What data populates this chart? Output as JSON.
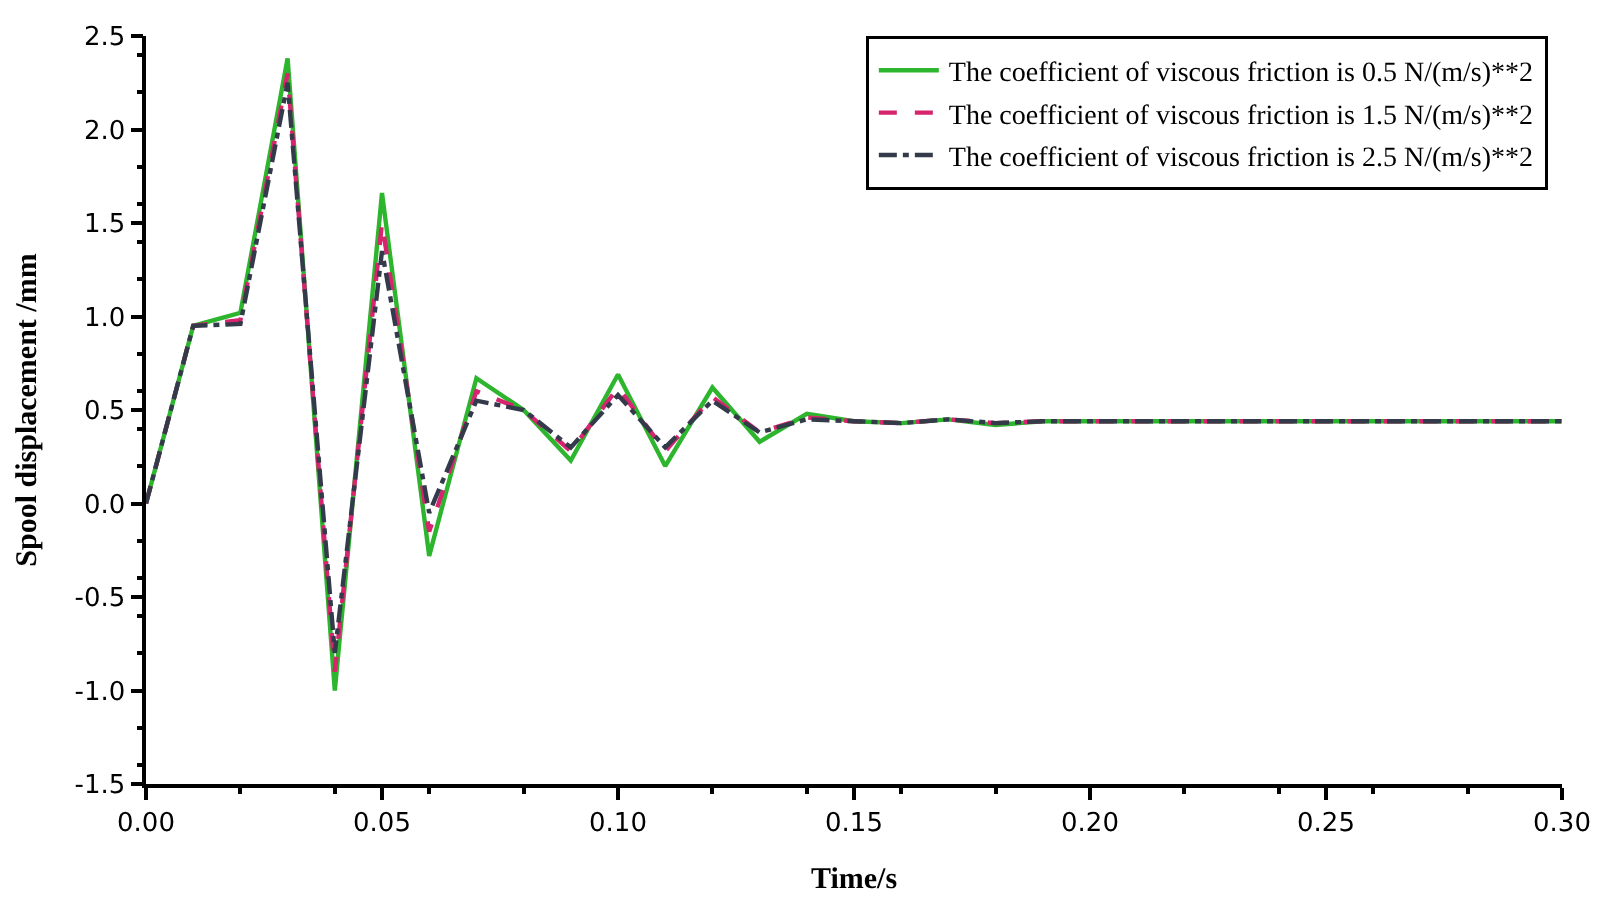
{
  "chart_data": {
    "type": "line",
    "xlabel": "Time/s",
    "ylabel": "Spool displacement /mm",
    "x": [
      0,
      0.01,
      0.02,
      0.03,
      0.04,
      0.05,
      0.06,
      0.07,
      0.08,
      0.09,
      0.1,
      0.11,
      0.12,
      0.13,
      0.14,
      0.15,
      0.16,
      0.17,
      0.18,
      0.19,
      0.2,
      0.3
    ],
    "series": [
      {
        "name": "The coefficient of viscous friction is 0.5 N/(m/s)**2",
        "color": "#2db52d",
        "line_style": "solid",
        "values": [
          0,
          0.95,
          1.02,
          2.38,
          -1.0,
          1.66,
          -0.28,
          0.67,
          0.5,
          0.23,
          0.69,
          0.2,
          0.62,
          0.33,
          0.48,
          0.44,
          0.43,
          0.45,
          0.42,
          0.44,
          0.44,
          0.44
        ]
      },
      {
        "name": "The coefficient of viscous friction is 1.5 N/(m/s)**2",
        "color": "#d6246e",
        "line_style": "dashed",
        "values": [
          0,
          0.95,
          0.98,
          2.3,
          -0.9,
          1.5,
          -0.15,
          0.6,
          0.5,
          0.28,
          0.62,
          0.28,
          0.57,
          0.38,
          0.46,
          0.44,
          0.43,
          0.45,
          0.43,
          0.44,
          0.44,
          0.44
        ]
      },
      {
        "name": "The coefficient of viscous friction is 2.5 N/(m/s)**2",
        "color": "#333a4a",
        "line_style": "dashdot",
        "values": [
          0,
          0.95,
          0.96,
          2.25,
          -0.8,
          1.35,
          -0.05,
          0.55,
          0.5,
          0.3,
          0.58,
          0.3,
          0.55,
          0.38,
          0.45,
          0.44,
          0.43,
          0.45,
          0.43,
          0.44,
          0.44,
          0.44
        ]
      }
    ],
    "xlim": [
      0,
      0.3
    ],
    "xticks": [
      {
        "value": 0,
        "label": "0.00"
      },
      0.05,
      {
        "value": 0.1,
        "label": "0.10"
      },
      0.15,
      {
        "value": 0.2,
        "label": "0.20"
      },
      0.25,
      {
        "value": 0.3,
        "label": "0.30"
      }
    ],
    "ylim": [
      -1.5,
      2.5
    ],
    "yticks": [
      -1.5,
      {
        "value": -1,
        "label": "-1.0"
      },
      -0.5,
      {
        "value": 0,
        "label": "0.0"
      },
      0.5,
      {
        "value": 1,
        "label": "1.0"
      },
      1.5,
      {
        "value": 2,
        "label": "2.0"
      },
      2.5
    ],
    "legend": "top right",
    "marker": "none"
  }
}
